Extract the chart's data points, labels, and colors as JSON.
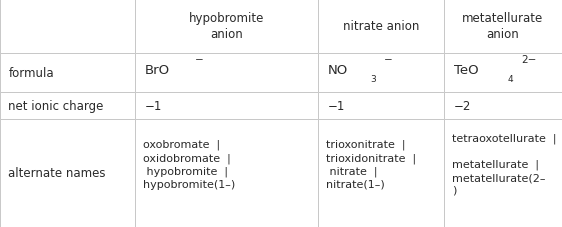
{
  "col_headers": [
    "hypobromite\nanion",
    "nitrate anion",
    "metatellurate\nanion"
  ],
  "row_headers": [
    "formula",
    "net ionic charge",
    "alternate names"
  ],
  "background_color": "#ffffff",
  "border_color": "#c8c8c8",
  "text_color": "#2a2a2a",
  "fontsize": 8.5,
  "col_bounds": [
    0.0,
    0.24,
    0.565,
    0.79,
    1.0
  ],
  "row_bounds": [
    1.0,
    0.765,
    0.59,
    0.475,
    0.0
  ],
  "charge_row": [
    "−1",
    "−1",
    "−2"
  ],
  "names_col1": "oxobromate  |\noxidobromate  |\n hypobromite  |\nhypobromite(1–)",
  "names_col2": "trioxonitrate  |\ntrioxidonitrate  |\n nitrate  |\nnitrate(1–)",
  "names_col3": "tetraoxotellurate  |\n\nmetatellurate  |\nmetatellurate(2–\n)"
}
